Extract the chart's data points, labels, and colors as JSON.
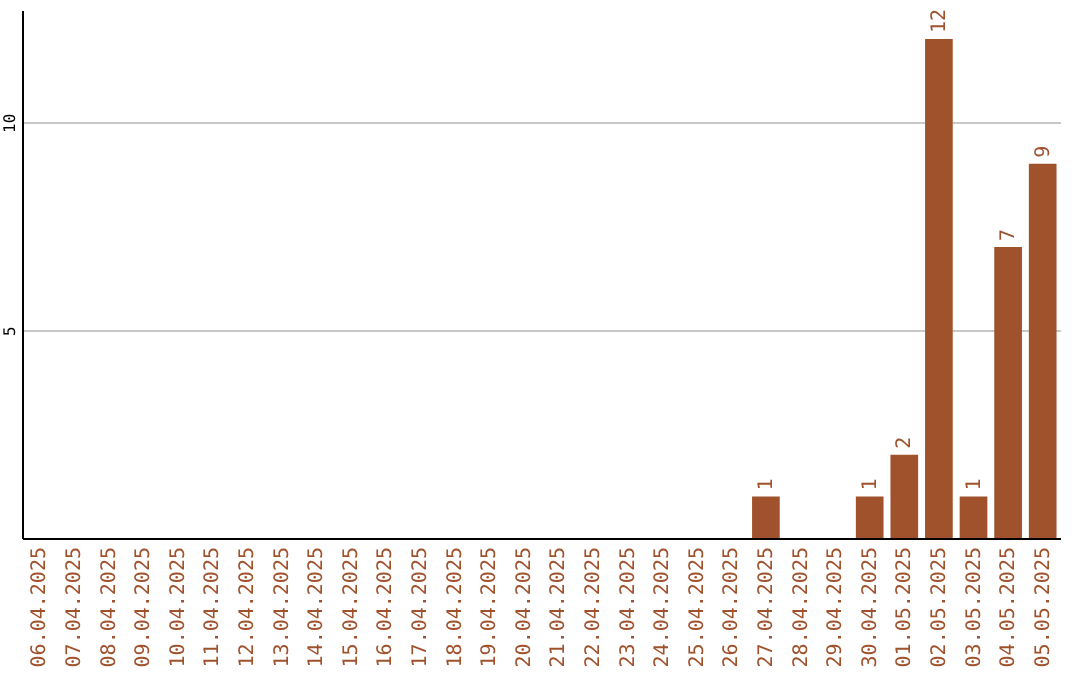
{
  "chart_data": {
    "type": "bar",
    "categories": [
      "06.04.2025",
      "07.04.2025",
      "08.04.2025",
      "09.04.2025",
      "10.04.2025",
      "11.04.2025",
      "12.04.2025",
      "13.04.2025",
      "14.04.2025",
      "15.04.2025",
      "16.04.2025",
      "17.04.2025",
      "18.04.2025",
      "19.04.2025",
      "20.04.2025",
      "21.04.2025",
      "22.04.2025",
      "23.04.2025",
      "24.04.2025",
      "25.04.2025",
      "26.04.2025",
      "27.04.2025",
      "28.04.2025",
      "29.04.2025",
      "30.04.2025",
      "01.05.2025",
      "02.05.2025",
      "03.05.2025",
      "04.05.2025",
      "05.05.2025"
    ],
    "values": [
      0,
      0,
      0,
      0,
      0,
      0,
      0,
      0,
      0,
      0,
      0,
      0,
      0,
      0,
      0,
      0,
      0,
      0,
      0,
      0,
      0,
      1,
      0,
      0,
      1,
      2,
      12,
      1,
      7,
      9
    ],
    "value_labels": [
      null,
      null,
      null,
      null,
      null,
      null,
      null,
      null,
      null,
      null,
      null,
      null,
      null,
      null,
      null,
      null,
      null,
      null,
      null,
      null,
      null,
      "1",
      null,
      null,
      "1",
      "2",
      "12",
      "1",
      "7",
      "9"
    ],
    "color": "#a0522d",
    "ylim": [
      0,
      12.7
    ],
    "yticks": [
      5,
      10
    ],
    "grid": "y"
  }
}
